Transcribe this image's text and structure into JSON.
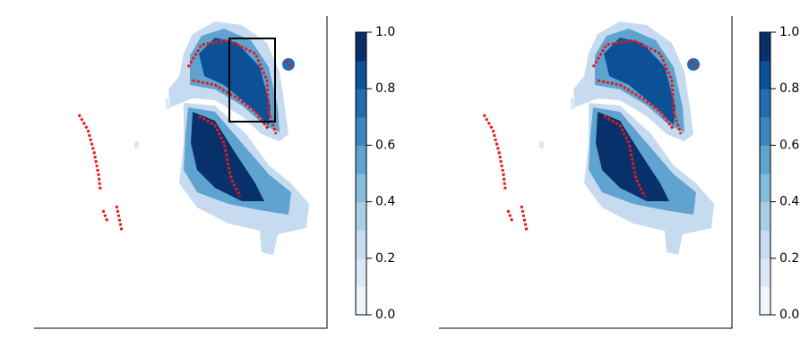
{
  "chart_data": [
    {
      "type": "heatmap",
      "ylim": [
        0,
        1
      ],
      "yticks": [
        {
          "value": 0,
          "label": "0.0"
        },
        0.2,
        0.4,
        0.6,
        0.8,
        {
          "value": 1,
          "label": "1.0"
        }
      ],
      "colors": [
        "#f0f6fc",
        "#dbe9f6",
        "#c6dbef",
        "#a9cfe5",
        "#85bcdc",
        "#5fa3d1",
        "#3d87c0",
        "#216db0",
        "#0c5098",
        "#08306b"
      ]
    },
    {
      "type": "heatmap",
      "ylim": [
        0,
        1
      ],
      "yticks": [
        {
          "value": 0,
          "label": "0.0"
        },
        0.2,
        0.4,
        0.6,
        0.8,
        {
          "value": 1,
          "label": "1.0"
        }
      ],
      "colors": [
        "#f0f6fc",
        "#dbe9f6",
        "#c6dbef",
        "#a9cfe5",
        "#85bcdc",
        "#5fa3d1",
        "#3d87c0",
        "#216db0",
        "#0c5098",
        "#08306b"
      ]
    }
  ]
}
